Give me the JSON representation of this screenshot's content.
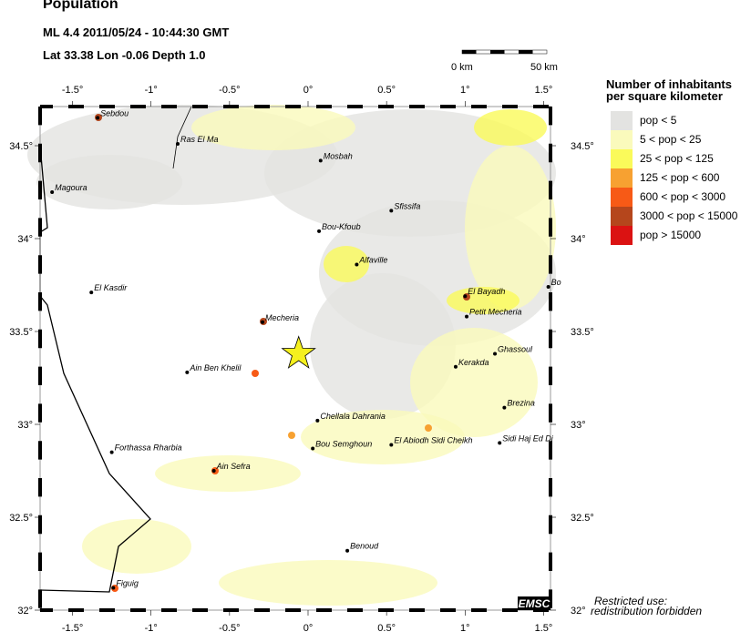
{
  "header": {
    "title": "Population",
    "event": "ML 4.4  2011/05/24 - 10:44:30 GMT",
    "location": "Lat 33.38    Lon  -0.06    Depth  1.0"
  },
  "scale_bar": {
    "start_label": "0 km",
    "end_label": "50 km"
  },
  "legend": {
    "title_line1": "Number of inhabitants",
    "title_line2": "per square kilometer",
    "items": [
      {
        "label": "pop < 5",
        "color": "#e3e3e1"
      },
      {
        "label": "5 < pop < 25",
        "color": "#fafabc"
      },
      {
        "label": "25 < pop < 125",
        "color": "#fafa5a"
      },
      {
        "label": "125 < pop < 600",
        "color": "#f7a131"
      },
      {
        "label": "600 < pop < 3000",
        "color": "#f75a16"
      },
      {
        "label": "3000 < pop < 15000",
        "color": "#b5461c"
      },
      {
        "label": "pop > 15000",
        "color": "#db1212"
      }
    ]
  },
  "map": {
    "lon_ticks": [
      "-1.5°",
      "-1°",
      "-0.5°",
      "0°",
      "0.5°",
      "1°",
      "1.5°"
    ],
    "lon_values": [
      -1.5,
      -1,
      -0.5,
      0,
      0.5,
      1,
      1.5
    ],
    "lat_ticks": [
      "34.5°",
      "34°",
      "33.5°",
      "33°",
      "32.5°",
      "32°"
    ],
    "lat_values": [
      34.5,
      34,
      33.5,
      33,
      32.5,
      32
    ],
    "epicenter": {
      "lat": 33.38,
      "lon": -0.06,
      "color": "#f5f01e"
    },
    "towns": [
      {
        "name": "Sebdou",
        "lon": -1.34,
        "lat": 34.65
      },
      {
        "name": "Ras El Ma",
        "lon": -0.83,
        "lat": 34.51
      },
      {
        "name": "Mosbah",
        "lon": 0.08,
        "lat": 34.42
      },
      {
        "name": "Magoura",
        "lon": -1.63,
        "lat": 34.25
      },
      {
        "name": "Sfissifa",
        "lon": 0.53,
        "lat": 34.15
      },
      {
        "name": "Bou-Kfoub",
        "lon": 0.07,
        "lat": 34.04
      },
      {
        "name": "Alfaville",
        "lon": 0.31,
        "lat": 33.86
      },
      {
        "name": "El Kasdir",
        "lon": -1.38,
        "lat": 33.71
      },
      {
        "name": "El Bayadh",
        "lon": 1.0,
        "lat": 33.69
      },
      {
        "name": "Bo",
        "lon": 1.53,
        "lat": 33.74
      },
      {
        "name": "Petit Mecheria",
        "lon": 1.01,
        "lat": 33.58
      },
      {
        "name": "Mecheria",
        "lon": -0.29,
        "lat": 33.55
      },
      {
        "name": "Ghassoul",
        "lon": 1.19,
        "lat": 33.38
      },
      {
        "name": "Kerakda",
        "lon": 0.94,
        "lat": 33.31
      },
      {
        "name": "Ain Ben Khelil",
        "lon": -0.77,
        "lat": 33.28
      },
      {
        "name": "Brezina",
        "lon": 1.25,
        "lat": 33.09
      },
      {
        "name": "Chellala Dahrania",
        "lon": 0.06,
        "lat": 33.02
      },
      {
        "name": "Forthassa Rharbia",
        "lon": -1.25,
        "lat": 32.85
      },
      {
        "name": "Bou Semghoun",
        "lon": 0.03,
        "lat": 32.87
      },
      {
        "name": "El Abiodh Sidi Cheikh",
        "lon": 0.53,
        "lat": 32.89
      },
      {
        "name": "Sidi Haj Ed Di",
        "lon": 1.22,
        "lat": 32.9
      },
      {
        "name": "Ain Sefra",
        "lon": -0.6,
        "lat": 32.75
      },
      {
        "name": "Benoud",
        "lon": 0.25,
        "lat": 32.32
      },
      {
        "name": "Figuig",
        "lon": -1.24,
        "lat": 32.12
      }
    ]
  },
  "logo": "EMSC",
  "notice": {
    "line1": "Restricted use:",
    "line2": "redistribution forbidden"
  }
}
